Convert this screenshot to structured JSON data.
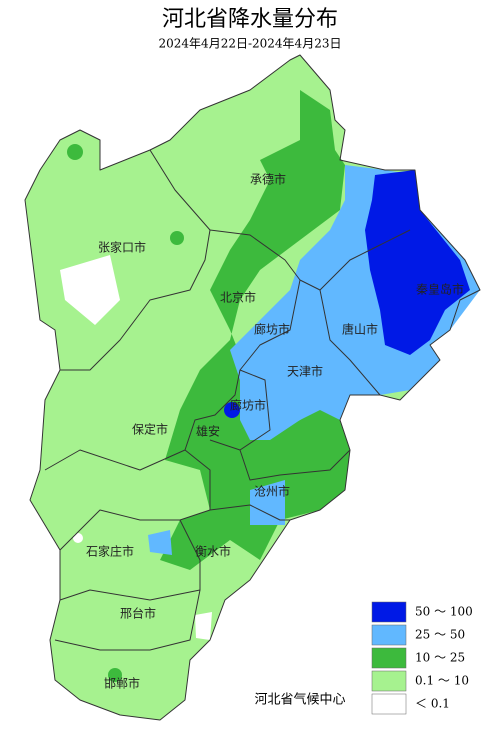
{
  "title": "河北省降水量分布",
  "subtitle": "2024年4月22日-2024年4月23日",
  "cities": [
    "承德市",
    "张家口市",
    "北京市",
    "廊坊市",
    "唐山市",
    "秦皇岛市",
    "天津市",
    "廊坊市",
    "保定市",
    "雄安",
    "沧州市",
    "石家庄市",
    "衡水市",
    "邢台市",
    "邯郸市"
  ],
  "legend": [
    {
      "label": "50 ～ 100",
      "color": "#0019e6"
    },
    {
      "label": "25 ～ 50",
      "color": "#61b8ff"
    },
    {
      "label": "10 ～ 25",
      "color": "#3dba3d"
    },
    {
      "label": "0.1 ～ 10",
      "color": "#a6f28f"
    },
    {
      "label": "＜ 0.1",
      "color": "#ffffff"
    }
  ],
  "source": "河北省气候中心"
}
